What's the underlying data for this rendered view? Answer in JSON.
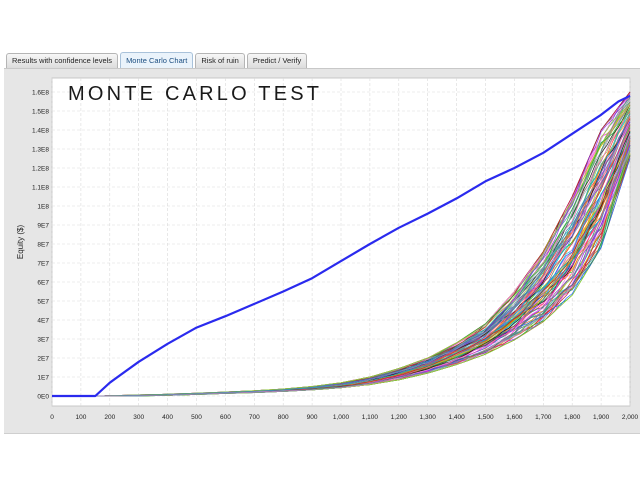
{
  "tabs": [
    {
      "label": "Results with confidence levels",
      "active": false
    },
    {
      "label": "Monte Carlo Chart",
      "active": true
    },
    {
      "label": "Risk of ruin",
      "active": false
    },
    {
      "label": "Predict / Verify",
      "active": false
    }
  ],
  "chart_data": {
    "type": "line",
    "title": "MONTE CARLO TEST",
    "xlabel": "",
    "ylabel": "Equity ($)",
    "xlim": [
      0,
      2000
    ],
    "ylim": [
      0,
      160000000
    ],
    "x_ticks": [
      0,
      100,
      200,
      300,
      400,
      500,
      600,
      700,
      800,
      900,
      1000,
      1100,
      1200,
      1300,
      1400,
      1500,
      1600,
      1700,
      1800,
      1900,
      2000
    ],
    "x_tick_labels": [
      "0",
      "100",
      "200",
      "300",
      "400",
      "500",
      "600",
      "700",
      "800",
      "900",
      "1,000",
      "1,100",
      "1,200",
      "1,300",
      "1,400",
      "1,500",
      "1,600",
      "1,700",
      "1,800",
      "1,900",
      "2,000"
    ],
    "y_ticks": [
      0,
      10000000,
      20000000,
      30000000,
      40000000,
      50000000,
      60000000,
      70000000,
      80000000,
      90000000,
      100000000,
      110000000,
      120000000,
      130000000,
      140000000,
      150000000,
      160000000
    ],
    "y_tick_labels": [
      "0E0",
      "1E7",
      "2E7",
      "3E7",
      "4E7",
      "5E7",
      "6E7",
      "7E7",
      "8E7",
      "9E7",
      "1E8",
      "1.1E8",
      "1.2E8",
      "1.3E8",
      "1.4E8",
      "1.5E8",
      "1.6E8"
    ],
    "grid": true,
    "original_series": {
      "color": "#2a2aee",
      "x": [
        0,
        150,
        200,
        300,
        400,
        500,
        600,
        700,
        800,
        900,
        1000,
        1100,
        1200,
        1300,
        1400,
        1500,
        1600,
        1700,
        1800,
        1900,
        1960,
        2000
      ],
      "y": [
        0,
        0,
        7000000,
        18000000,
        27500000,
        36000000,
        42000000,
        48500000,
        55000000,
        62000000,
        71000000,
        80000000,
        88500000,
        96000000,
        104000000,
        113000000,
        120000000,
        128000000,
        138000000,
        148000000,
        155000000,
        158000000
      ]
    },
    "simulation_envelope": {
      "x": [
        0,
        150,
        200,
        300,
        400,
        500,
        600,
        700,
        800,
        900,
        1000,
        1100,
        1200,
        1300,
        1400,
        1500,
        1600,
        1700,
        1800,
        1900,
        2000
      ],
      "low": [
        0,
        0,
        0,
        0,
        300000,
        800000,
        1300000,
        1800000,
        2400000,
        3200000,
        4300000,
        6000000,
        8500000,
        12000000,
        16500000,
        22000000,
        29500000,
        39000000,
        53000000,
        78000000,
        125000000
      ],
      "high": [
        0,
        0,
        200000,
        600000,
        1000000,
        1500000,
        2100000,
        2800000,
        3700000,
        5000000,
        7000000,
        10000000,
        14500000,
        20000000,
        28000000,
        38000000,
        55000000,
        76000000,
        105000000,
        140000000,
        160000000
      ]
    },
    "simulation_count": 100,
    "simulation_colors": [
      "#ff2a2a",
      "#22c022",
      "#1e5bff",
      "#ff33cc",
      "#00c4c4",
      "#c8c800",
      "#ff8c1a",
      "#8a2be2",
      "#111111",
      "#a6a6a6",
      "#ff69b4",
      "#2e8b57",
      "#d2691e",
      "#6a5acd",
      "#b22222",
      "#20b2aa",
      "#9acd32",
      "#4682b4",
      "#ee82ee",
      "#778899"
    ]
  }
}
